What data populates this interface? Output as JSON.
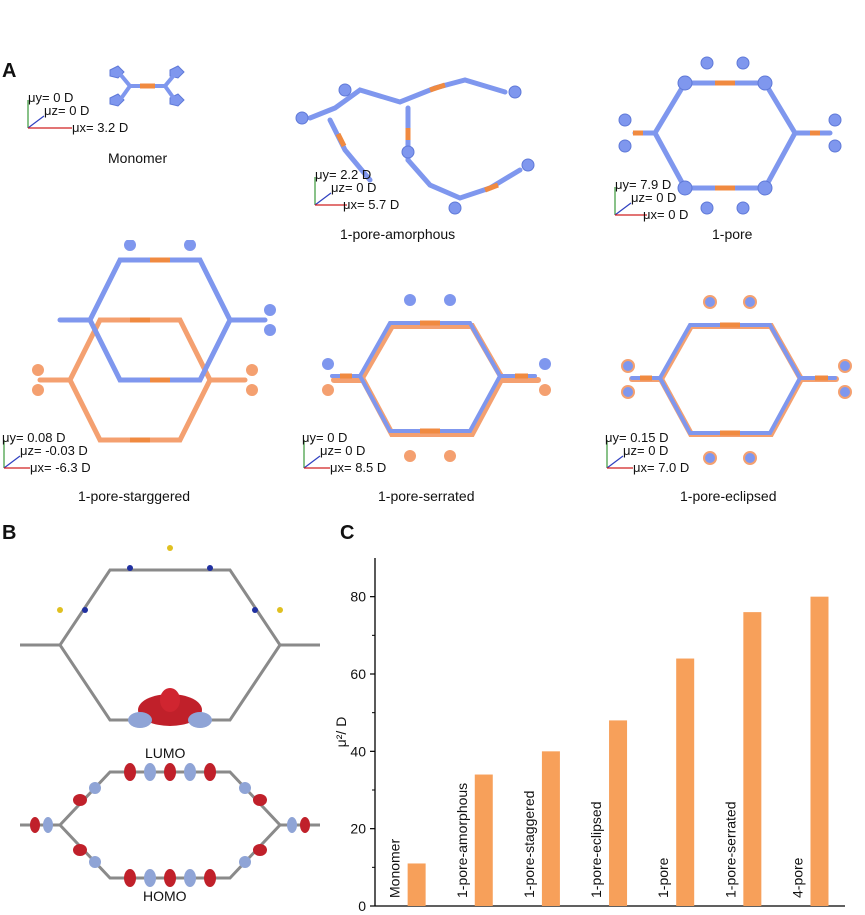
{
  "panels": {
    "a": "A",
    "b": "B",
    "c": "C"
  },
  "structures": [
    {
      "id": "monomer",
      "name": "Monomer",
      "mu_y": "μy= 0 D",
      "mu_z": "μz= 0 D",
      "mu_x": "μx= 3.2 D"
    },
    {
      "id": "amorphous",
      "name": "1-pore-amorphous",
      "mu_y": "μy= 2.2 D",
      "mu_z": "μz= 0 D",
      "mu_x": "μx= 5.7 D"
    },
    {
      "id": "pore",
      "name": "1-pore",
      "mu_y": "μy= 7.9 D",
      "mu_z": "μz= 0 D",
      "mu_x": "μx= 0 D"
    },
    {
      "id": "staggered",
      "name": "1-pore-starggered",
      "mu_y": "μy= 0.08 D",
      "mu_z": "μz= -0.03 D",
      "mu_x": "μx= -6.3 D"
    },
    {
      "id": "serrated",
      "name": "1-pore-serrated",
      "mu_y": "μy= 0 D",
      "mu_z": "μz= 0 D",
      "mu_x": "μx= 8.5 D"
    },
    {
      "id": "eclipsed",
      "name": "1-pore-eclipsed",
      "mu_y": "μy= 0.15 D",
      "mu_z": "μz= 0 D",
      "mu_x": "μx= 7.0 D"
    }
  ],
  "orbitals": {
    "lumo": "LUMO",
    "homo": "HOMO"
  },
  "colors": {
    "blue": "#7f97ee",
    "orange": "#f4a070",
    "bar": "#f7a05a",
    "red_lobe": "#c0202a",
    "blue_lobe": "#8fa4d6"
  },
  "chart_data": {
    "type": "bar",
    "categories": [
      "Monomer",
      "1-pore-amorphous",
      "1-pore-staggered",
      "1-pore-eclipsed",
      "1-pore",
      "1-pore-serrated",
      "4-pore"
    ],
    "values": [
      11,
      34,
      40,
      48,
      64,
      76,
      80
    ],
    "ylabel": "μ²/ D",
    "ylim": [
      0,
      90
    ],
    "yticks": [
      0,
      20,
      40,
      60,
      80
    ],
    "grid": false,
    "legend": "none"
  }
}
